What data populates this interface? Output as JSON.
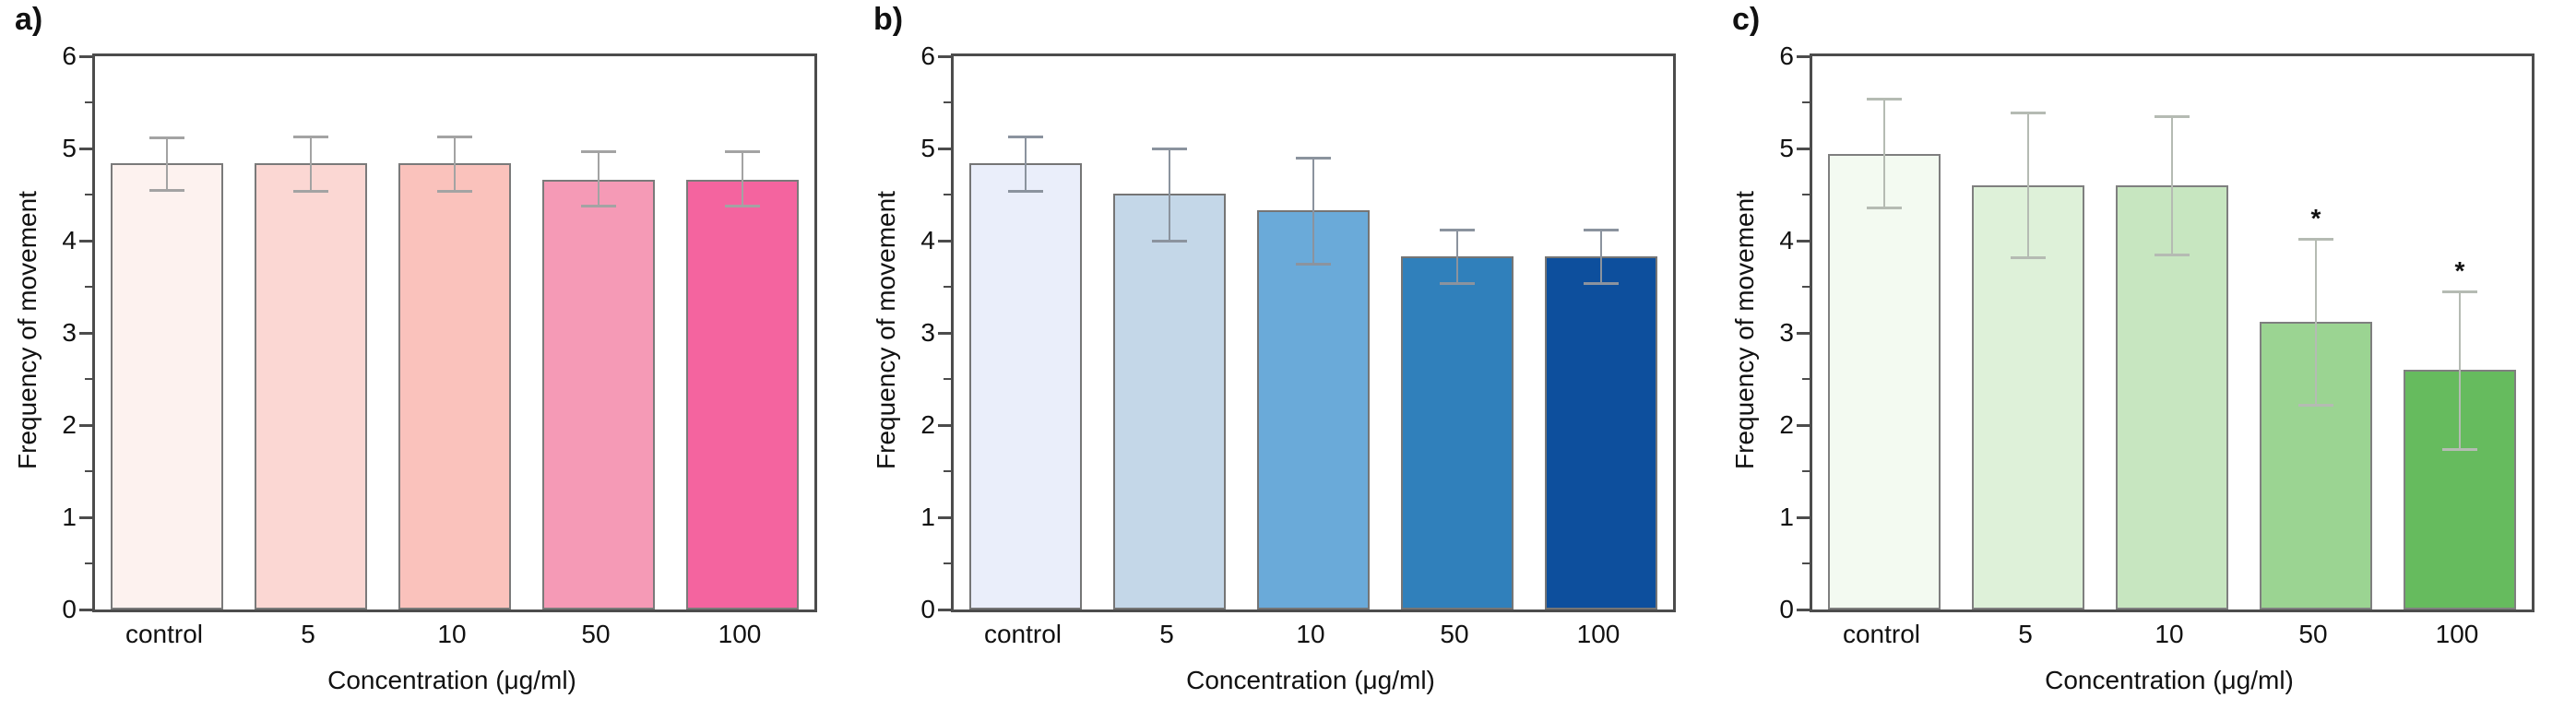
{
  "figure": {
    "background": "#ffffff",
    "axis_color": "#4c4c4c",
    "text_color": "#111111"
  },
  "chart_data": [
    {
      "id": "a",
      "type": "bar",
      "panel_label": "a)",
      "categories": [
        "control",
        "5",
        "10",
        "50",
        "100"
      ],
      "values": [
        4.84,
        4.84,
        4.84,
        4.66,
        4.66
      ],
      "errors_up": [
        0.28,
        0.29,
        0.29,
        0.31,
        0.31
      ],
      "errors_down": [
        0.29,
        0.3,
        0.3,
        0.28,
        0.28
      ],
      "significance": [
        "",
        "",
        "",
        "",
        ""
      ],
      "bar_colors": [
        "#fdf2ef",
        "#fbd7d3",
        "#fac2bc",
        "#f59ab6",
        "#f4649f"
      ],
      "border_color": "#7a7a7a",
      "error_color": "#a3a3a3",
      "ylabel": "Frequency of movement",
      "xlabel": "Concentration (μg/ml)",
      "ylim": [
        0,
        6
      ],
      "major_step": 1,
      "minor_step": 0.5,
      "grid": false,
      "legend": "none"
    },
    {
      "id": "b",
      "type": "bar",
      "panel_label": "b)",
      "categories": [
        "control",
        "5",
        "10",
        "50",
        "100"
      ],
      "values": [
        4.84,
        4.51,
        4.33,
        3.83,
        3.83
      ],
      "errors_up": [
        0.29,
        0.49,
        0.57,
        0.29,
        0.29
      ],
      "errors_down": [
        0.3,
        0.51,
        0.58,
        0.29,
        0.29
      ],
      "significance": [
        "",
        "",
        "",
        "",
        ""
      ],
      "bar_colors": [
        "#eaeefa",
        "#c4d7e8",
        "#6aaad9",
        "#3080bb",
        "#0d4f9d"
      ],
      "border_color": "#757575",
      "error_color": "#8b939e",
      "ylabel": "Frequency of movement",
      "xlabel": "Concentration (μg/ml)",
      "ylim": [
        0,
        6
      ],
      "major_step": 1,
      "minor_step": 0.5,
      "grid": false,
      "legend": "none"
    },
    {
      "id": "c",
      "type": "bar",
      "panel_label": "c)",
      "categories": [
        "control",
        "5",
        "10",
        "50",
        "100"
      ],
      "values": [
        4.94,
        4.6,
        4.6,
        3.12,
        2.6
      ],
      "errors_up": [
        0.6,
        0.79,
        0.75,
        0.9,
        0.85
      ],
      "errors_down": [
        0.58,
        0.78,
        0.75,
        0.9,
        0.86
      ],
      "significance": [
        "",
        "",
        "",
        "*",
        "*"
      ],
      "bar_colors": [
        "#f3faf1",
        "#def1d9",
        "#c7e6c0",
        "#9bd492",
        "#66bb5e"
      ],
      "border_color": "#7f7f7f",
      "error_color": "#b5bbb3",
      "ylabel": "Frequency of movement",
      "xlabel": "Concentration (μg/ml)",
      "ylim": [
        0,
        6
      ],
      "major_step": 1,
      "minor_step": 0.5,
      "grid": false,
      "legend": "none"
    }
  ]
}
